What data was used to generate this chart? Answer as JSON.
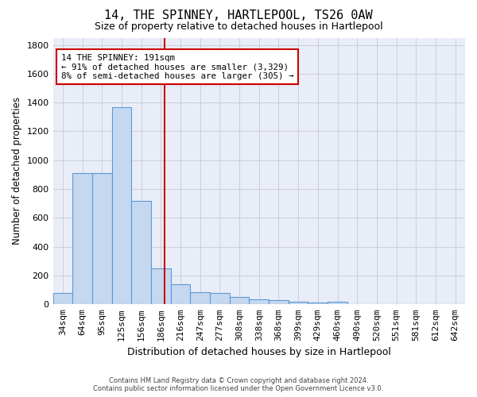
{
  "title": "14, THE SPINNEY, HARTLEPOOL, TS26 0AW",
  "subtitle": "Size of property relative to detached houses in Hartlepool",
  "xlabel": "Distribution of detached houses by size in Hartlepool",
  "ylabel": "Number of detached properties",
  "bin_labels": [
    "34sqm",
    "64sqm",
    "95sqm",
    "125sqm",
    "156sqm",
    "186sqm",
    "216sqm",
    "247sqm",
    "277sqm",
    "308sqm",
    "338sqm",
    "368sqm",
    "399sqm",
    "429sqm",
    "460sqm",
    "490sqm",
    "520sqm",
    "551sqm",
    "581sqm",
    "612sqm",
    "642sqm"
  ],
  "bar_values": [
    80,
    910,
    910,
    1370,
    720,
    250,
    140,
    85,
    80,
    50,
    35,
    30,
    20,
    15,
    20,
    0,
    0,
    0,
    0,
    0,
    0
  ],
  "bar_color": "#c5d8ef",
  "bar_edge_color": "#5b9bd5",
  "vline_x": 5.17,
  "vline_color": "#cc0000",
  "annotation_line1": "14 THE SPINNEY: 191sqm",
  "annotation_line2": "← 91% of detached houses are smaller (3,329)",
  "annotation_line3": "8% of semi-detached houses are larger (305) →",
  "annotation_box_color": "#cc0000",
  "ylim": [
    0,
    1850
  ],
  "yticks": [
    0,
    200,
    400,
    600,
    800,
    1000,
    1200,
    1400,
    1600,
    1800
  ],
  "grid_color": "#c8c8d8",
  "background_color": "#e8edf8",
  "footer_line1": "Contains HM Land Registry data © Crown copyright and database right 2024.",
  "footer_line2": "Contains public sector information licensed under the Open Government Licence v3.0."
}
